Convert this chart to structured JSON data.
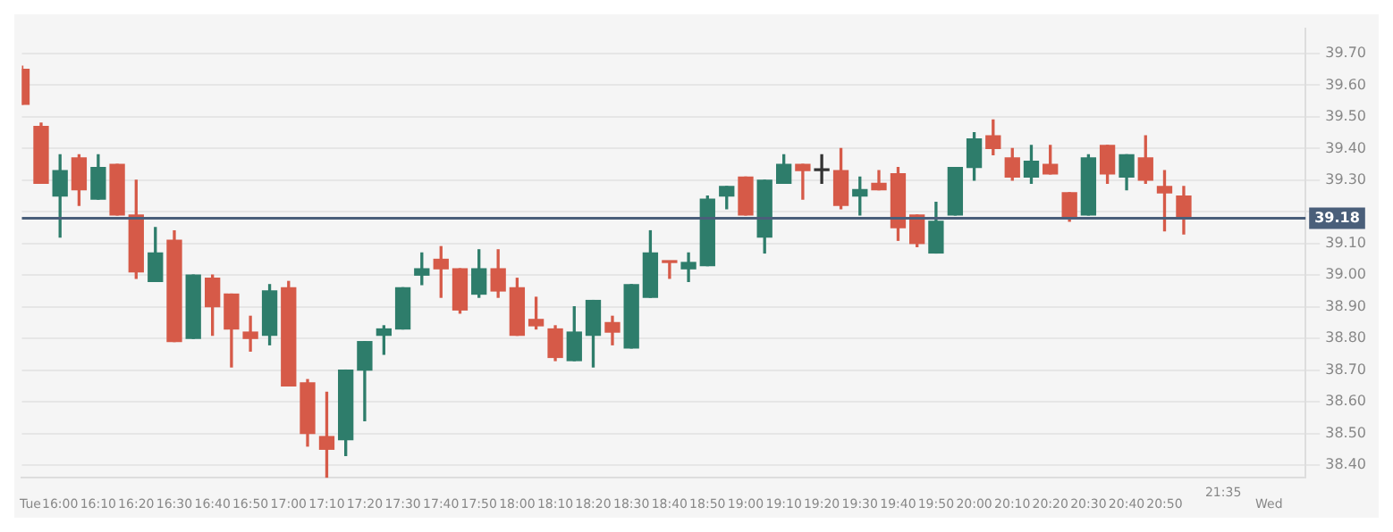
{
  "chart_data": {
    "type": "candlestick",
    "x": [
      15.833,
      15.917,
      16,
      16.083,
      16.167,
      16.25,
      16.333,
      16.417,
      16.5,
      16.583,
      16.667,
      16.75,
      16.833,
      16.917,
      17,
      17.083,
      17.167,
      17.25,
      17.333,
      17.417,
      17.5,
      17.583,
      17.667,
      17.75,
      17.833,
      17.917,
      18,
      18.083,
      18.167,
      18.25,
      18.333,
      18.417,
      18.5,
      18.583,
      18.667,
      18.75,
      18.833,
      18.917,
      19,
      19.083,
      19.167,
      19.25,
      19.333,
      19.417,
      19.5,
      19.583,
      19.667,
      19.75,
      19.833,
      19.917,
      20,
      20.083,
      20.167,
      20.25,
      20.333,
      20.417,
      20.5,
      20.583,
      20.667,
      20.75,
      20.833,
      20.917
    ],
    "ohlc": [
      [
        39.65,
        39.66,
        39.54,
        39.54
      ],
      [
        39.47,
        39.48,
        39.29,
        39.29
      ],
      [
        39.25,
        39.38,
        39.12,
        39.33
      ],
      [
        39.37,
        39.38,
        39.22,
        39.27
      ],
      [
        39.24,
        39.38,
        39.24,
        39.34
      ],
      [
        39.35,
        39.35,
        39.19,
        39.19
      ],
      [
        39.19,
        39.3,
        38.99,
        39.01
      ],
      [
        38.98,
        39.15,
        38.98,
        39.07
      ],
      [
        39.11,
        39.14,
        38.79,
        38.79
      ],
      [
        38.8,
        39.0,
        38.8,
        39.0
      ],
      [
        38.99,
        39.0,
        38.81,
        38.9
      ],
      [
        38.94,
        38.94,
        38.71,
        38.83
      ],
      [
        38.82,
        38.87,
        38.76,
        38.8
      ],
      [
        38.81,
        38.97,
        38.78,
        38.95
      ],
      [
        38.96,
        38.98,
        38.65,
        38.65
      ],
      [
        38.66,
        38.67,
        38.46,
        38.5
      ],
      [
        38.49,
        38.63,
        38.36,
        38.45
      ],
      [
        38.48,
        38.7,
        38.43,
        38.7
      ],
      [
        38.7,
        38.79,
        38.54,
        38.79
      ],
      [
        38.81,
        38.84,
        38.75,
        38.83
      ],
      [
        38.83,
        38.96,
        38.83,
        38.96
      ],
      [
        39.0,
        39.07,
        38.97,
        39.02
      ],
      [
        39.05,
        39.09,
        38.93,
        39.02
      ],
      [
        39.02,
        39.02,
        38.88,
        38.89
      ],
      [
        38.94,
        39.08,
        38.93,
        39.02
      ],
      [
        39.02,
        39.08,
        38.93,
        38.95
      ],
      [
        38.96,
        38.99,
        38.81,
        38.81
      ],
      [
        38.86,
        38.93,
        38.83,
        38.84
      ],
      [
        38.83,
        38.84,
        38.73,
        38.74
      ],
      [
        38.73,
        38.9,
        38.73,
        38.82
      ],
      [
        38.81,
        38.92,
        38.71,
        38.92
      ],
      [
        38.85,
        38.87,
        38.78,
        38.82
      ],
      [
        38.77,
        38.97,
        38.77,
        38.97
      ],
      [
        38.93,
        39.14,
        38.93,
        39.07
      ],
      [
        39.04,
        39.04,
        38.99,
        39.04
      ],
      [
        39.02,
        39.07,
        38.98,
        39.04
      ],
      [
        39.03,
        39.25,
        39.03,
        39.24
      ],
      [
        39.25,
        39.28,
        39.21,
        39.28
      ],
      [
        39.31,
        39.31,
        39.19,
        39.19
      ],
      [
        39.12,
        39.3,
        39.07,
        39.3
      ],
      [
        39.29,
        39.38,
        39.29,
        39.35
      ],
      [
        39.35,
        39.35,
        39.24,
        39.33
      ],
      [
        39.33,
        39.38,
        39.29,
        39.33
      ],
      [
        39.33,
        39.4,
        39.21,
        39.22
      ],
      [
        39.25,
        39.31,
        39.19,
        39.27
      ],
      [
        39.29,
        39.33,
        39.27,
        39.27
      ],
      [
        39.32,
        39.34,
        39.11,
        39.15
      ],
      [
        39.19,
        39.19,
        39.09,
        39.1
      ],
      [
        39.07,
        39.23,
        39.07,
        39.17
      ],
      [
        39.19,
        39.34,
        39.19,
        39.34
      ],
      [
        39.34,
        39.45,
        39.3,
        39.43
      ],
      [
        39.44,
        39.49,
        39.38,
        39.4
      ],
      [
        39.37,
        39.4,
        39.3,
        39.31
      ],
      [
        39.31,
        39.41,
        39.29,
        39.36
      ],
      [
        39.35,
        39.41,
        39.32,
        39.32
      ],
      [
        39.26,
        39.26,
        39.17,
        39.18
      ],
      [
        39.19,
        39.38,
        39.19,
        39.37
      ],
      [
        39.41,
        39.41,
        39.29,
        39.32
      ],
      [
        39.31,
        39.38,
        39.27,
        39.38
      ],
      [
        39.37,
        39.44,
        39.29,
        39.3
      ],
      [
        39.28,
        39.33,
        39.14,
        39.26
      ],
      [
        39.25,
        39.28,
        39.13,
        39.18
      ]
    ],
    "colors": [
      "#d65a48",
      "#d65a48",
      "#2e7d6b",
      "#d65a48",
      "#2e7d6b",
      "#d65a48",
      "#d65a48",
      "#2e7d6b",
      "#d65a48",
      "#2e7d6b",
      "#d65a48",
      "#d65a48",
      "#d65a48",
      "#2e7d6b",
      "#d65a48",
      "#d65a48",
      "#d65a48",
      "#2e7d6b",
      "#2e7d6b",
      "#2e7d6b",
      "#2e7d6b",
      "#2e7d6b",
      "#d65a48",
      "#d65a48",
      "#2e7d6b",
      "#d65a48",
      "#d65a48",
      "#d65a48",
      "#d65a48",
      "#2e7d6b",
      "#2e7d6b",
      "#d65a48",
      "#2e7d6b",
      "#2e7d6b",
      "#d65a48",
      "#2e7d6b",
      "#2e7d6b",
      "#2e7d6b",
      "#d65a48",
      "#2e7d6b",
      "#2e7d6b",
      "#d65a48",
      "#333333",
      "#d65a48",
      "#2e7d6b",
      "#d65a48",
      "#d65a48",
      "#d65a48",
      "#2e7d6b",
      "#2e7d6b",
      "#2e7d6b",
      "#d65a48",
      "#d65a48",
      "#2e7d6b",
      "#d65a48",
      "#d65a48",
      "#2e7d6b",
      "#d65a48",
      "#2e7d6b",
      "#d65a48",
      "#d65a48",
      "#d65a48"
    ],
    "xlim": [
      15.833,
      21.45
    ],
    "xticks": [
      {
        "value": 15.87,
        "label": "Tue"
      },
      {
        "value": 16,
        "label": "16:00"
      },
      {
        "value": 16.167,
        "label": "16:10"
      },
      {
        "value": 16.333,
        "label": "16:20"
      },
      {
        "value": 16.5,
        "label": "16:30"
      },
      {
        "value": 16.667,
        "label": "16:40"
      },
      {
        "value": 16.833,
        "label": "16:50"
      },
      {
        "value": 17,
        "label": "17:00"
      },
      {
        "value": 17.167,
        "label": "17:10"
      },
      {
        "value": 17.333,
        "label": "17:20"
      },
      {
        "value": 17.5,
        "label": "17:30"
      },
      {
        "value": 17.667,
        "label": "17:40"
      },
      {
        "value": 17.833,
        "label": "17:50"
      },
      {
        "value": 18,
        "label": "18:00"
      },
      {
        "value": 18.167,
        "label": "18:10"
      },
      {
        "value": 18.333,
        "label": "18:20"
      },
      {
        "value": 18.5,
        "label": "18:30"
      },
      {
        "value": 18.667,
        "label": "18:40"
      },
      {
        "value": 18.833,
        "label": "18:50"
      },
      {
        "value": 19,
        "label": "19:00"
      },
      {
        "value": 19.167,
        "label": "19:10"
      },
      {
        "value": 19.333,
        "label": "19:20"
      },
      {
        "value": 19.5,
        "label": "19:30"
      },
      {
        "value": 19.667,
        "label": "19:40"
      },
      {
        "value": 19.833,
        "label": "19:50"
      },
      {
        "value": 20,
        "label": "20:00"
      },
      {
        "value": 20.167,
        "label": "20:10"
      },
      {
        "value": 20.333,
        "label": "20:20"
      },
      {
        "value": 20.5,
        "label": "20:30"
      },
      {
        "value": 20.667,
        "label": "20:40"
      },
      {
        "value": 20.833,
        "label": "20:50"
      },
      {
        "value": 21.29,
        "label": "Wed"
      }
    ],
    "ylim": [
      38.36,
      39.78
    ],
    "yticks": [
      {
        "value": 38.4,
        "label": "38.40"
      },
      {
        "value": 38.5,
        "label": "38.50"
      },
      {
        "value": 38.6,
        "label": "38.60"
      },
      {
        "value": 38.7,
        "label": "38.70"
      },
      {
        "value": 38.8,
        "label": "38.80"
      },
      {
        "value": 38.9,
        "label": "38.90"
      },
      {
        "value": 39.0,
        "label": "39.00"
      },
      {
        "value": 39.1,
        "label": "39.10"
      },
      {
        "value": 39.2,
        "label": null
      },
      {
        "value": 39.3,
        "label": "39.30"
      },
      {
        "value": 39.4,
        "label": "39.40"
      },
      {
        "value": 39.5,
        "label": "39.50"
      },
      {
        "value": 39.6,
        "label": "39.60"
      },
      {
        "value": 39.7,
        "label": "39.70"
      }
    ],
    "ref_lines": [
      {
        "axis": "y",
        "value": 39.18,
        "label": "39.18",
        "color": "#4a5f7a"
      }
    ],
    "annotations": [
      "21:35"
    ],
    "grid": "y"
  }
}
